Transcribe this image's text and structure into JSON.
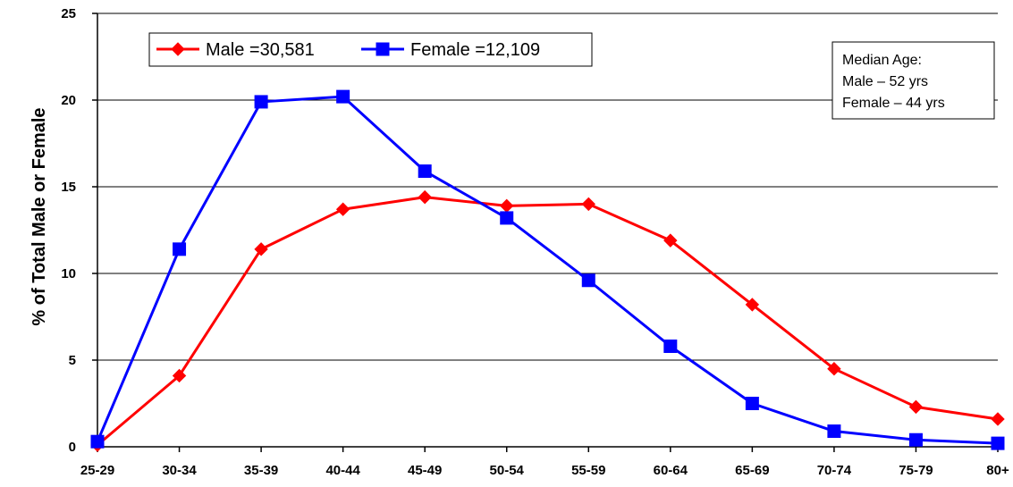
{
  "chart_data": {
    "type": "line",
    "title": "",
    "xlabel": "",
    "ylabel": "% of Total Male or Female",
    "categories": [
      "25-29",
      "30-34",
      "35-39",
      "40-44",
      "45-49",
      "50-54",
      "55-59",
      "60-64",
      "65-69",
      "70-74",
      "75-79",
      "80+"
    ],
    "ylim": [
      0,
      25
    ],
    "yticks": [
      "0",
      "5",
      "10",
      "15",
      "20",
      "25"
    ],
    "grid": true,
    "legend_position": "top-left",
    "series": [
      {
        "name": "Male =30,581",
        "color": "#ff0000",
        "marker": "diamond",
        "values": [
          0.1,
          4.1,
          11.4,
          13.7,
          14.4,
          13.9,
          14.0,
          11.9,
          8.2,
          4.5,
          2.3,
          1.6
        ]
      },
      {
        "name": "Female =12,109",
        "color": "#0000ff",
        "marker": "square",
        "values": [
          0.3,
          11.4,
          19.9,
          20.2,
          15.9,
          13.2,
          9.6,
          5.8,
          2.5,
          0.9,
          0.4,
          0.2
        ]
      }
    ],
    "annotation": {
      "lines": [
        "Median Age:",
        "Male – 52 yrs",
        "Female – 44 yrs"
      ]
    }
  }
}
